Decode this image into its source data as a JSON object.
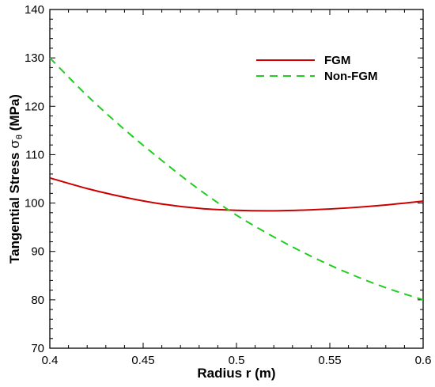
{
  "chart_data": {
    "type": "line",
    "title": "",
    "xlabel": "Radius r (m)",
    "ylabel": {
      "prefix": "Tangential Stress ",
      "symbol": "σ",
      "subscript": "θ",
      "suffix": " (MPa)"
    },
    "xlim": [
      0.4,
      0.6
    ],
    "ylim": [
      70,
      140
    ],
    "xticks": [
      "0.4",
      "0.45",
      "0.5",
      "0.55",
      "0.6"
    ],
    "yticks": [
      "70",
      "80",
      "90",
      "100",
      "110",
      "120",
      "130",
      "140"
    ],
    "grid": false,
    "legend_position": "top-right",
    "x": [
      0.4,
      0.42,
      0.44,
      0.46,
      0.48,
      0.5,
      0.52,
      0.54,
      0.56,
      0.58,
      0.6
    ],
    "series": [
      {
        "name": "FGM",
        "color": "#cc0000",
        "style": "solid",
        "values": [
          105.2,
          103.0,
          101.2,
          99.8,
          98.9,
          98.5,
          98.4,
          98.6,
          99.0,
          99.6,
          100.4
        ]
      },
      {
        "name": "Non-FGM",
        "color": "#22cc22",
        "style": "dashed",
        "values": [
          130.0,
          122.2,
          115.2,
          108.8,
          102.8,
          97.5,
          93.0,
          89.0,
          85.5,
          82.5,
          80.0
        ]
      }
    ]
  }
}
